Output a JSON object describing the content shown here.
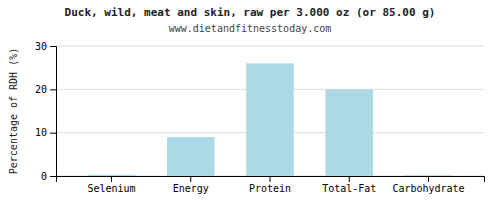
{
  "chart_data": {
    "type": "bar",
    "title": "Duck, wild, meat and skin, raw per 3.000 oz (or 85.00 g)",
    "subtitle": "www.dietandfitnesstoday.com",
    "categories": [
      "Selenium",
      "Energy",
      "Protein",
      "Total-Fat",
      "Carbohydrate"
    ],
    "values": [
      0.3,
      9.0,
      26.0,
      20.0,
      0.2
    ],
    "color": "#add8e6",
    "ylabel": "Percentage of RDH (%)",
    "ylim": [
      0,
      30
    ],
    "yticks": [
      0,
      10,
      20,
      30
    ],
    "grid": true
  }
}
